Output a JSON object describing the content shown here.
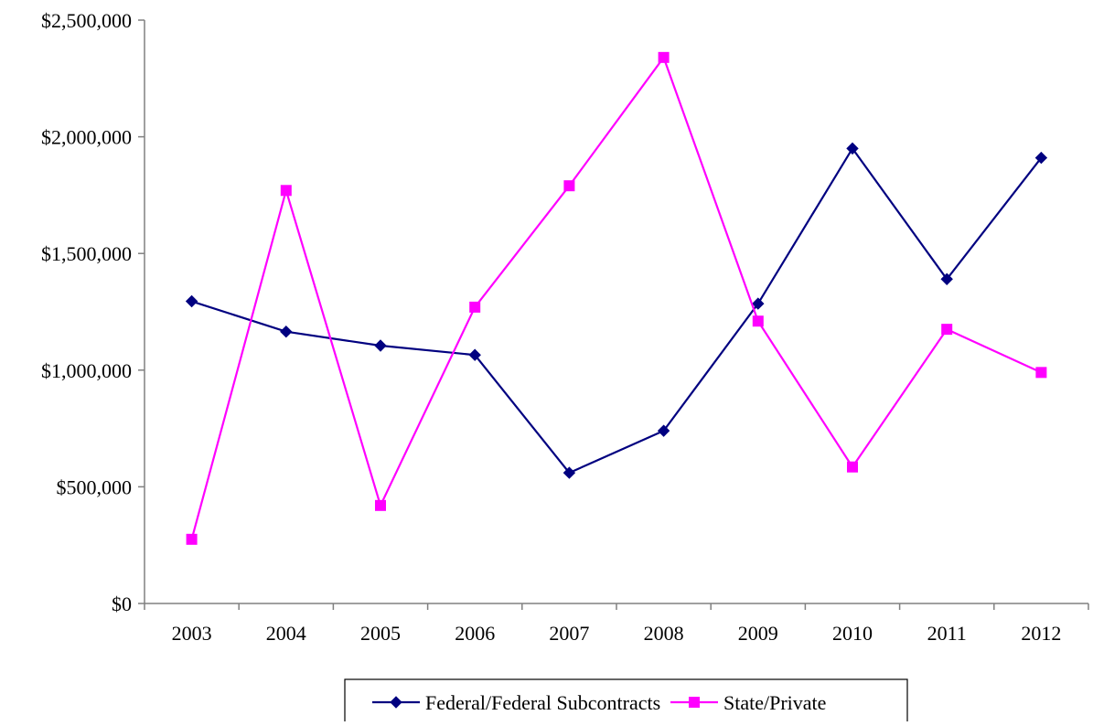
{
  "chart_data": {
    "type": "line",
    "title": "",
    "xlabel": "",
    "ylabel": "",
    "categories": [
      "2003",
      "2004",
      "2005",
      "2006",
      "2007",
      "2008",
      "2009",
      "2010",
      "2011",
      "2012"
    ],
    "ylim": [
      0,
      2500000
    ],
    "y_ticks": [
      0,
      500000,
      1000000,
      1500000,
      2000000,
      2500000
    ],
    "y_tick_labels": [
      "$0",
      "$500,000",
      "$1,000,000",
      "$1,500,000",
      "$2,000,000",
      "$2,500,000"
    ],
    "grid": false,
    "legend_position": "bottom",
    "series": [
      {
        "name": "Federal/Federal Subcontracts",
        "color": "#000080",
        "marker": "diamond",
        "values": [
          1295000,
          1165000,
          1105000,
          1065000,
          560000,
          740000,
          1285000,
          1950000,
          1390000,
          1910000
        ]
      },
      {
        "name": "State/Private",
        "color": "#FF00FF",
        "marker": "square",
        "values": [
          275000,
          1770000,
          420000,
          1270000,
          1790000,
          2340000,
          1210000,
          585000,
          1175000,
          990000
        ]
      }
    ]
  }
}
